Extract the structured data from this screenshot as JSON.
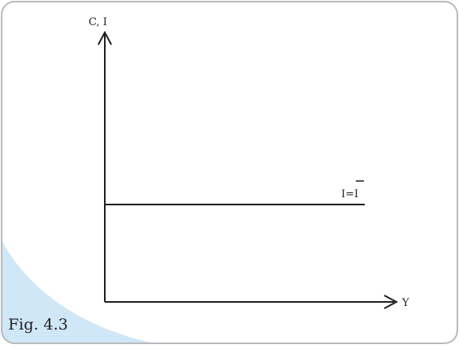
{
  "figure": {
    "y_axis_label": "C, I",
    "x_axis_label": "Y",
    "line_label_left": "I=",
    "line_label_bar_letter": "I",
    "caption": "Fig. 4.3"
  }
}
